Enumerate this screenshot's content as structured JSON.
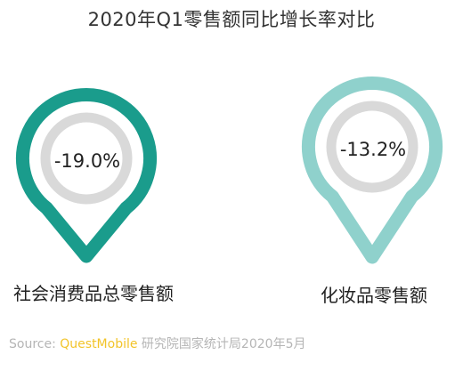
{
  "chart_data": {
    "type": "infographic",
    "title": "2020年Q1零售额同比增长率对比",
    "items": [
      {
        "label": "社会消费品总零售额",
        "value": -19.0,
        "value_text": "-19.0%",
        "color": "#1a9c8c"
      },
      {
        "label": "化妆品零售额",
        "value": -13.2,
        "value_text": "-13.2%",
        "color": "#8fd1cc"
      }
    ]
  },
  "source": {
    "prefix": "Source: ",
    "brand": "QuestMobile",
    "suffix": " 研究院国家统计局2020年5月"
  },
  "colors": {
    "ring": "#d9d9d9",
    "brand": "#f2c42a"
  }
}
